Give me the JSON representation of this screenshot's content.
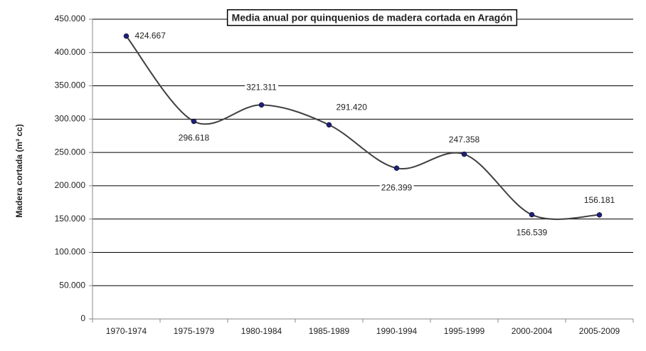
{
  "chart_data": {
    "type": "line",
    "title": "Media anual por quinquenios de madera cortada en Aragón",
    "y_label": "Madera cortada (m³ cc)",
    "categories": [
      "1970-1974",
      "1975-1979",
      "1980-1984",
      "1985-1989",
      "1990-1994",
      "1995-1999",
      "2000-2004",
      "2005-2009"
    ],
    "series": [
      {
        "color": "#404040",
        "values": [
          424667,
          296618,
          321311,
          291420,
          226399,
          247358,
          156539,
          156181
        ],
        "value_labels": [
          "424.667",
          "296.618",
          "321.311",
          "291.420",
          "226.399",
          "247.358",
          "156.539",
          "156.181"
        ]
      }
    ],
    "marker_color": "#1f1f7a",
    "ylim": [
      0,
      450000
    ],
    "yticks": [
      0,
      {
        "value": 50000,
        "label": "50.000"
      },
      {
        "value": 100000,
        "label": "100.000"
      },
      {
        "value": 150000,
        "label": "150.000"
      },
      {
        "value": 200000,
        "label": "200.000"
      },
      {
        "value": 250000,
        "label": "250.000"
      },
      {
        "value": 300000,
        "label": "300.000"
      },
      {
        "value": 350000,
        "label": "350.000"
      },
      {
        "value": 400000,
        "label": "400.000"
      },
      {
        "value": 450000,
        "label": "450.000"
      }
    ],
    "grid": true,
    "smooth": true
  }
}
